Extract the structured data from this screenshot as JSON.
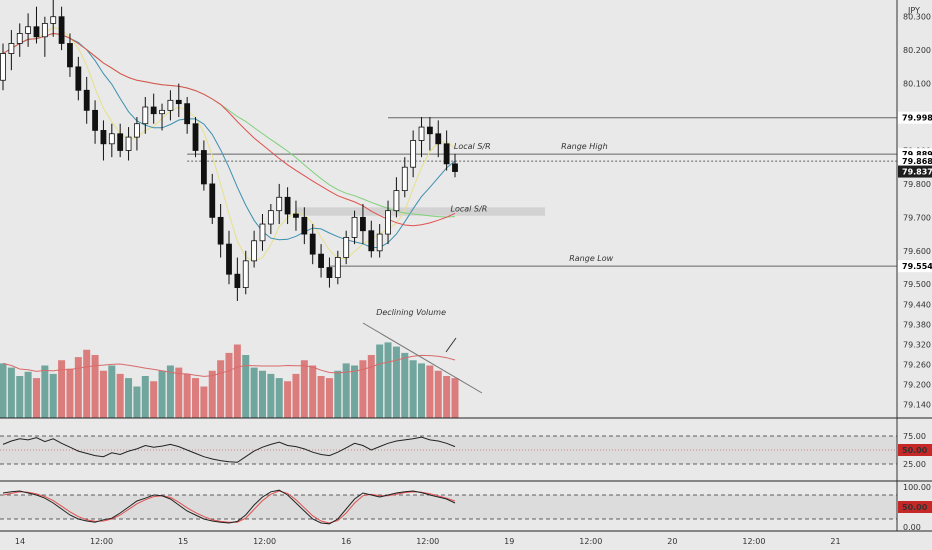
{
  "chart_data": {
    "type": "candlestick",
    "currency": "JPY",
    "price_axis": {
      "ylim": [
        79.1,
        80.35
      ],
      "ticks": [
        "80.300",
        "80.200",
        "80.100",
        "80.000",
        "79.900",
        "79.800",
        "79.700",
        "79.600",
        "79.500",
        "79.440",
        "79.380",
        "79.320",
        "79.260",
        "79.200",
        "79.140"
      ],
      "tick_values": [
        80.3,
        80.2,
        80.1,
        80.0,
        79.9,
        79.8,
        79.7,
        79.6,
        79.5,
        79.44,
        79.38,
        79.32,
        79.26,
        79.2,
        79.14
      ]
    },
    "x_axis": {
      "ticks": [
        "14",
        "12:00",
        "15",
        "12:00",
        "16",
        "12:00",
        "19",
        "12:00",
        "20",
        "12:00",
        "21"
      ],
      "tick_hours": [
        0,
        12,
        24,
        36,
        48,
        60,
        72,
        84,
        96,
        108,
        120
      ],
      "range_hours": [
        0,
        132
      ]
    },
    "price_labels": [
      {
        "text": "79.998",
        "value": 79.998,
        "bg": "#ffffff",
        "fg": "#000000"
      },
      {
        "text": "79.889",
        "value": 79.889,
        "bg": "#ffffff",
        "fg": "#000000"
      },
      {
        "text": "79.868",
        "value": 79.868,
        "bg": "#ffffff",
        "fg": "#000000"
      },
      {
        "text": "79.837",
        "value": 79.837,
        "bg": "#1e1e1e",
        "fg": "#ffffff"
      },
      {
        "text": "79.554",
        "value": 79.554,
        "bg": "#ffffff",
        "fg": "#000000"
      }
    ],
    "levels": [
      {
        "name": "range-high",
        "value": 79.998
      },
      {
        "name": "local-sr-line",
        "value": 79.889
      },
      {
        "name": "local-sr-dotted",
        "value": 79.868
      },
      {
        "name": "range-low",
        "value": 79.554
      }
    ],
    "annotations": [
      {
        "text": "Local S/R",
        "hour": 69.5,
        "value": 79.905
      },
      {
        "text": "Range High",
        "hour": 86,
        "value": 79.905
      },
      {
        "text": "Local S/R",
        "hour": 69,
        "value": 79.718
      },
      {
        "text": "Range Low",
        "hour": 87,
        "value": 79.57
      },
      {
        "text": "Declining Volume",
        "hour": 60.5,
        "value": 79.408
      }
    ],
    "candles_ohlc": [
      [
        80.11,
        80.22,
        80.08,
        80.19
      ],
      [
        80.19,
        80.26,
        80.14,
        80.22
      ],
      [
        80.22,
        80.28,
        80.18,
        80.25
      ],
      [
        80.25,
        80.31,
        80.21,
        80.27
      ],
      [
        80.27,
        80.33,
        80.22,
        80.24
      ],
      [
        80.24,
        80.3,
        80.18,
        80.28
      ],
      [
        80.28,
        80.35,
        80.24,
        80.3
      ],
      [
        80.3,
        80.33,
        80.2,
        80.22
      ],
      [
        80.22,
        80.25,
        80.12,
        80.15
      ],
      [
        80.15,
        80.18,
        80.05,
        80.08
      ],
      [
        80.08,
        80.12,
        79.98,
        80.02
      ],
      [
        80.02,
        80.05,
        79.92,
        79.96
      ],
      [
        79.96,
        79.99,
        79.87,
        79.92
      ],
      [
        79.92,
        79.98,
        79.88,
        79.95
      ],
      [
        79.95,
        79.98,
        79.88,
        79.9
      ],
      [
        79.9,
        79.97,
        79.87,
        79.94
      ],
      [
        79.94,
        80.0,
        79.9,
        79.98
      ],
      [
        79.98,
        80.06,
        79.95,
        80.03
      ],
      [
        80.03,
        80.07,
        79.98,
        80.01
      ],
      [
        80.01,
        80.04,
        79.96,
        80.02
      ],
      [
        80.02,
        80.08,
        79.99,
        80.05
      ],
      [
        80.05,
        80.1,
        80.0,
        80.04
      ],
      [
        80.04,
        80.06,
        79.95,
        79.98
      ],
      [
        79.98,
        80.0,
        79.88,
        79.9
      ],
      [
        79.9,
        79.93,
        79.78,
        79.8
      ],
      [
        79.8,
        79.83,
        79.68,
        79.7
      ],
      [
        79.7,
        79.74,
        79.58,
        79.62
      ],
      [
        79.62,
        79.66,
        79.5,
        79.53
      ],
      [
        79.53,
        79.58,
        79.45,
        79.49
      ],
      [
        79.49,
        79.6,
        79.47,
        79.57
      ],
      [
        79.57,
        79.66,
        79.55,
        79.63
      ],
      [
        79.63,
        79.71,
        79.6,
        79.68
      ],
      [
        79.68,
        79.74,
        79.65,
        79.72
      ],
      [
        79.72,
        79.8,
        79.68,
        79.76
      ],
      [
        79.76,
        79.79,
        79.68,
        79.71
      ],
      [
        79.71,
        79.75,
        79.66,
        79.7
      ],
      [
        79.7,
        79.73,
        79.62,
        79.65
      ],
      [
        79.65,
        79.68,
        79.56,
        79.59
      ],
      [
        79.59,
        79.62,
        79.52,
        79.55
      ],
      [
        79.55,
        79.58,
        79.49,
        79.52
      ],
      [
        79.52,
        79.6,
        79.5,
        79.58
      ],
      [
        79.58,
        79.66,
        79.56,
        79.64
      ],
      [
        79.64,
        79.72,
        79.62,
        79.7
      ],
      [
        79.7,
        79.74,
        79.62,
        79.66
      ],
      [
        79.66,
        79.69,
        79.58,
        79.6
      ],
      [
        79.6,
        79.68,
        79.58,
        79.65
      ],
      [
        79.65,
        79.75,
        79.62,
        79.72
      ],
      [
        79.72,
        79.82,
        79.7,
        79.78
      ],
      [
        79.78,
        79.88,
        79.76,
        79.85
      ],
      [
        79.85,
        79.96,
        79.82,
        79.93
      ],
      [
        79.93,
        80.0,
        79.88,
        79.97
      ],
      [
        79.97,
        80.0,
        79.9,
        79.95
      ],
      [
        79.95,
        79.99,
        79.88,
        79.92
      ],
      [
        79.92,
        79.96,
        79.84,
        79.86
      ],
      [
        79.86,
        79.89,
        79.82,
        79.837
      ]
    ],
    "volume": {
      "scale_max": 100,
      "values": [
        52,
        48,
        40,
        44,
        38,
        50,
        42,
        55,
        47,
        58,
        65,
        60,
        45,
        50,
        42,
        38,
        30,
        40,
        35,
        45,
        50,
        48,
        42,
        38,
        30,
        45,
        55,
        62,
        70,
        60,
        48,
        45,
        42,
        38,
        35,
        42,
        55,
        50,
        40,
        38,
        45,
        52,
        50,
        55,
        60,
        70,
        72,
        68,
        62,
        55,
        52,
        50,
        45,
        40,
        38
      ],
      "bullish_color": "#5b9a8f",
      "bearish_color": "#d96a6a",
      "ma_color": "#d96a6a"
    },
    "moving_averages": [
      {
        "period": 5,
        "color": "#e8e08a"
      },
      {
        "period": 9,
        "color": "#3c8fb0"
      },
      {
        "period": 30,
        "color": "#7fd07a"
      },
      {
        "period": 60,
        "color": "#e05050"
      }
    ],
    "rsi": {
      "ticks": [
        "75.00",
        "50.00",
        "25.00"
      ],
      "tick_values": [
        75,
        50,
        25
      ],
      "label_50": {
        "text": "50.00",
        "bg": "#c62828",
        "fg": "#ffffff"
      },
      "values": [
        60,
        66,
        70,
        68,
        72,
        65,
        70,
        62,
        55,
        48,
        44,
        40,
        38,
        45,
        42,
        48,
        52,
        58,
        55,
        57,
        60,
        56,
        50,
        44,
        38,
        34,
        31,
        29,
        28,
        38,
        48,
        55,
        60,
        64,
        58,
        56,
        52,
        46,
        42,
        40,
        46,
        54,
        62,
        58,
        50,
        56,
        62,
        66,
        68,
        70,
        73,
        68,
        66,
        62,
        56
      ]
    },
    "stochastic": {
      "ticks": [
        "100.00",
        "50.00",
        "0.00"
      ],
      "tick_values": [
        100,
        50,
        0
      ],
      "label_50": {
        "text": "50.00",
        "bg": "#c62828",
        "fg": "#ffffff"
      },
      "k_values": [
        85,
        88,
        90,
        85,
        80,
        72,
        60,
        45,
        30,
        20,
        15,
        12,
        18,
        22,
        35,
        50,
        65,
        72,
        80,
        78,
        70,
        55,
        40,
        30,
        20,
        15,
        12,
        10,
        14,
        30,
        55,
        75,
        88,
        92,
        80,
        60,
        40,
        20,
        10,
        8,
        20,
        45,
        70,
        85,
        80,
        75,
        80,
        85,
        88,
        90,
        86,
        80,
        75,
        70,
        60
      ],
      "d_values": [
        80,
        84,
        88,
        87,
        83,
        76,
        66,
        52,
        38,
        26,
        18,
        14,
        15,
        20,
        30,
        44,
        58,
        68,
        76,
        78,
        74,
        62,
        48,
        36,
        26,
        18,
        14,
        12,
        12,
        22,
        44,
        66,
        82,
        90,
        84,
        68,
        48,
        28,
        15,
        10,
        16,
        35,
        60,
        78,
        82,
        78,
        78,
        82,
        86,
        88,
        87,
        83,
        78,
        72,
        65
      ],
      "k_color": "#222222",
      "d_color": "#e05050"
    }
  }
}
